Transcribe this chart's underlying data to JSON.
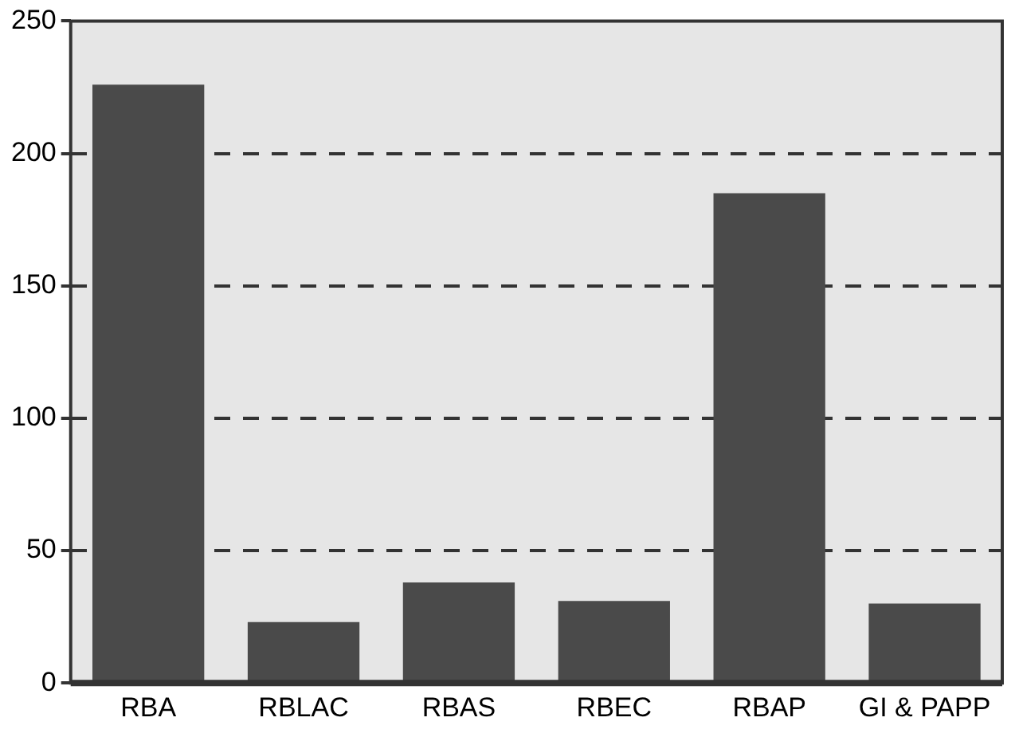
{
  "chart_data": {
    "type": "bar",
    "categories": [
      "RBA",
      "RBLAC",
      "RBAS",
      "RBEC",
      "RBAP",
      "GI & PAPP"
    ],
    "values": [
      226,
      23,
      38,
      31,
      185,
      30
    ],
    "color": "#4a4a4a",
    "ylim": [
      0,
      250
    ],
    "yticks": [
      0,
      50,
      100,
      150,
      200,
      250
    ],
    "grid": "y",
    "legend": false
  }
}
